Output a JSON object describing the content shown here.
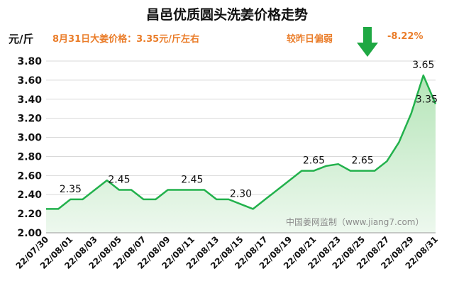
{
  "chart_data": {
    "type": "area",
    "title": "昌邑优质圆头洗姜价格走势",
    "ylabel": "元/斤",
    "ylim": [
      2.0,
      3.8
    ],
    "yticks": [
      "2.00",
      "2.20",
      "2.40",
      "2.60",
      "2.80",
      "3.00",
      "3.20",
      "3.40",
      "3.60",
      "3.80"
    ],
    "grid": true,
    "x": [
      "22/07/30",
      "22/07/31",
      "22/08/01",
      "22/08/02",
      "22/08/03",
      "22/08/04",
      "22/08/05",
      "22/08/06",
      "22/08/07",
      "22/08/08",
      "22/08/09",
      "22/08/10",
      "22/08/11",
      "22/08/12",
      "22/08/13",
      "22/08/14",
      "22/08/15",
      "22/08/16",
      "22/08/17",
      "22/08/18",
      "22/08/19",
      "22/08/20",
      "22/08/21",
      "22/08/22",
      "22/08/23",
      "22/08/24",
      "22/08/25",
      "22/08/26",
      "22/08/27",
      "22/08/28",
      "22/08/29",
      "22/08/30",
      "22/08/31"
    ],
    "xtick_labels": [
      "22/07/30",
      "22/08/01",
      "22/08/03",
      "22/08/05",
      "22/08/07",
      "22/08/09",
      "22/08/11",
      "22/08/13",
      "22/08/15",
      "22/08/17",
      "22/08/19",
      "22/08/21",
      "22/08/23",
      "22/08/25",
      "22/08/27",
      "22/08/29",
      "22/08/31"
    ],
    "values": [
      2.25,
      2.25,
      2.35,
      2.35,
      2.45,
      2.55,
      2.45,
      2.45,
      2.35,
      2.35,
      2.45,
      2.45,
      2.45,
      2.45,
      2.35,
      2.35,
      2.3,
      2.25,
      2.35,
      2.45,
      2.55,
      2.65,
      2.65,
      2.7,
      2.72,
      2.65,
      2.65,
      2.65,
      2.75,
      2.95,
      3.25,
      3.65,
      3.35
    ],
    "data_labels": [
      {
        "index": 2,
        "text": "2.35"
      },
      {
        "index": 6,
        "text": "2.45"
      },
      {
        "index": 12,
        "text": "2.45"
      },
      {
        "index": 16,
        "text": "2.30"
      },
      {
        "index": 22,
        "text": "2.65"
      },
      {
        "index": 26,
        "text": "2.65"
      },
      {
        "index": 31,
        "text": "3.65"
      },
      {
        "index": 32,
        "text": "3.35"
      }
    ],
    "colors": {
      "line": "#22b14c",
      "fill_top": "#b5e5b8",
      "fill_bottom": "#edf8ee",
      "arrow": "#1fa843"
    }
  },
  "annotations": {
    "price_text": "8月31日大姜价格：3.35元/斤左右",
    "compare_label": "较昨日偏弱",
    "compare_value": "-8.22%",
    "arrow_icon": "down-arrow-icon",
    "watermark": "中国姜网监制（www.jiang7.com）"
  }
}
